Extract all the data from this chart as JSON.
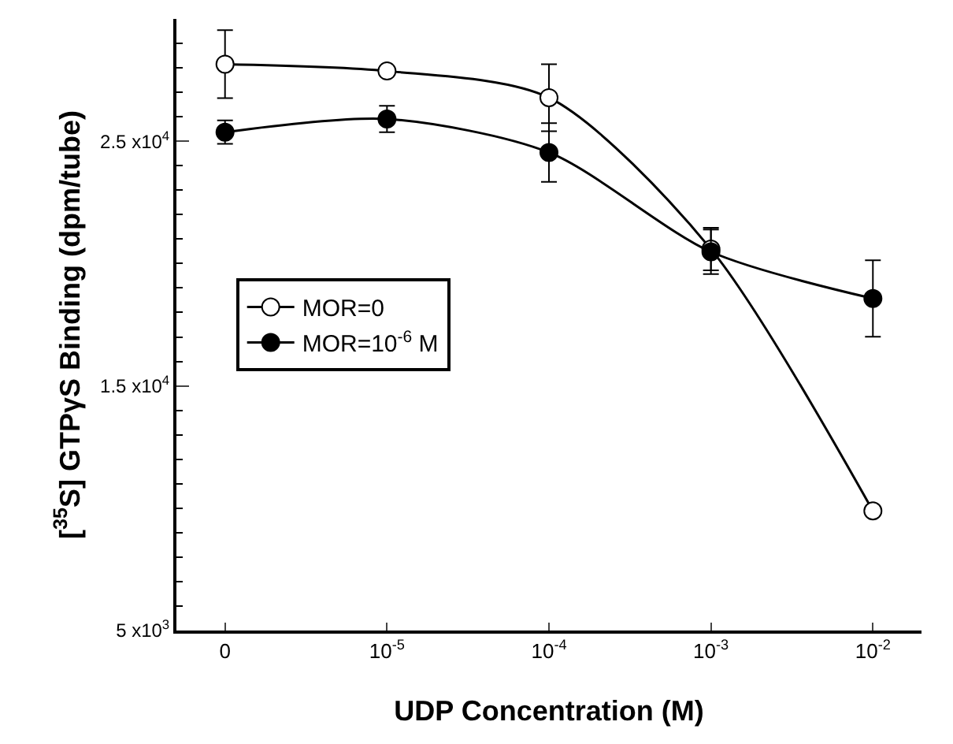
{
  "chart_data": {
    "type": "line",
    "xlabel": "UDP Concentration (M)",
    "ylabel": "[$^{35}$S] GTPγS Binding (dpm/tube)",
    "categories": [
      "0",
      "10$^{-5}$",
      "10$^{-4}$",
      "10$^{-3}$",
      "10$^{-2}$"
    ],
    "series": [
      {
        "name": "MOR=0",
        "color": "#ffffff",
        "values": [
          28150,
          27870,
          26780,
          20590,
          9890
        ],
        "errors": [
          1390,
          null,
          1370,
          870,
          null
        ]
      },
      {
        "name": "MOR=10$^{-6}$ M",
        "color": "#000000",
        "values": [
          25370,
          25910,
          24540,
          20480,
          18570
        ],
        "errors": [
          480,
          540,
          1200,
          910,
          1560
        ]
      }
    ],
    "ylim": [
      5000,
      30000
    ],
    "yticks": [
      {
        "value": 5000,
        "label": "5 x10$^{3}$"
      },
      {
        "value": 15000,
        "label": "1.5 x10$^{4}$"
      },
      {
        "value": 25000,
        "label": "2.5 x10$^{4}$"
      }
    ],
    "marker": "circle",
    "line_style": "solid",
    "legend": "left"
  }
}
